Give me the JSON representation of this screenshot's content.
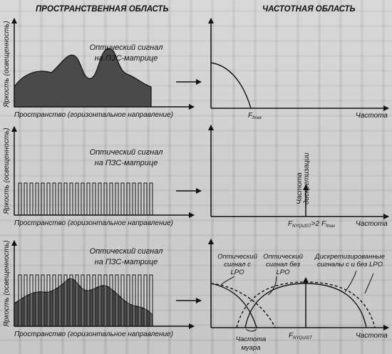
{
  "headers": {
    "spatial": "ПРОСТРАНСТВЕННАЯ ОБЛАСТЬ",
    "frequency": "ЧАСТОТНАЯ ОБЛАСТЬ"
  },
  "panels": [
    {
      "spatial": {
        "ylabel": "Яркость (освещенность)",
        "xlabel": "Пространство (горизонтальное направление)",
        "caption_line1": "Оптический сигнал",
        "caption_line2": "на ПЗС-матрице"
      },
      "frequency": {
        "xlabel": "Частота",
        "fmax_main": "F",
        "fmax_sub": "fmax"
      }
    },
    {
      "spatial": {
        "ylabel": "Яркость (освещенность)",
        "xlabel": "Пространство (горизонтальное направление)",
        "caption_line1": "Оптический сигнал",
        "caption_line2": "на ПЗС-матрице"
      },
      "frequency": {
        "xlabel": "Частота",
        "sampling_label_line1": "Частота",
        "sampling_label_line2": "дискретизации",
        "nyquist_main": "F",
        "nyquist_sub": "NYQUIST",
        "relation": ">2 F",
        "relation_sub": "fmax"
      }
    },
    {
      "spatial": {
        "ylabel": "Яркость (освещенность)",
        "xlabel": "Пространство (горизонтальное направление)",
        "caption_line1": "Оптический сигнал",
        "caption_line2": "на ПЗС-матрице"
      },
      "frequency": {
        "xlabel": "Частота",
        "lpo_with_line1": "Оптический",
        "lpo_with_line2": "сигнал с",
        "lpo_with_line3": "LPO",
        "lpo_without_line1": "Оптический",
        "lpo_without_line2": "сигнал без",
        "lpo_without_line3": "LPO",
        "sampled_line1": "Дискретизированные",
        "sampled_line2": "сигналы с и без LPO",
        "moire_line1": "Частота",
        "moire_line2": "муара",
        "nyquist_main": "F",
        "nyquist_sub": "NYQUIST"
      }
    }
  ],
  "colors": {
    "signal_fill": "#4a4a4a",
    "ink": "#111111",
    "background": "#c9c9c9"
  }
}
